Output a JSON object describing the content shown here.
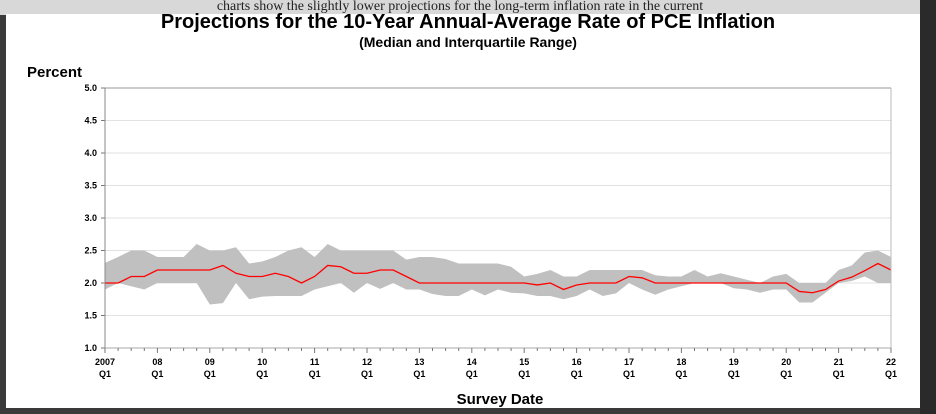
{
  "background_text": "charts show the slightly lower projections for the long-term inflation rate in the current",
  "chart_data": {
    "type": "area",
    "title": "Projections for the 10-Year Annual-Average Rate of PCE Inflation",
    "subtitle": "(Median and Interquartile Range)",
    "ylabel": "Percent",
    "xlabel": "Survey Date",
    "ylim": [
      1.0,
      5.0
    ],
    "yticks": [
      "1.0",
      "1.5",
      "2.0",
      "2.5",
      "3.0",
      "3.5",
      "4.0",
      "4.5",
      "5.0"
    ],
    "xticks": [
      [
        "2007",
        "Q1"
      ],
      [
        "08",
        "Q1"
      ],
      [
        "09",
        "Q1"
      ],
      [
        "10",
        "Q1"
      ],
      [
        "11",
        "Q1"
      ],
      [
        "12",
        "Q1"
      ],
      [
        "13",
        "Q1"
      ],
      [
        "14",
        "Q1"
      ],
      [
        "15",
        "Q1"
      ],
      [
        "16",
        "Q1"
      ],
      [
        "17",
        "Q1"
      ],
      [
        "18",
        "Q1"
      ],
      [
        "19",
        "Q1"
      ],
      [
        "20",
        "Q1"
      ],
      [
        "21",
        "Q1"
      ],
      [
        "22",
        "Q1"
      ]
    ],
    "x_range": [
      "2007Q1",
      "2022Q1"
    ],
    "grid": true,
    "colors": {
      "median": "#ff0000",
      "range": "#c0c0c0"
    },
    "series": [
      {
        "role": "median",
        "values": [
          2.0,
          2.0,
          2.1,
          2.1,
          2.2,
          2.2,
          2.2,
          2.2,
          2.2,
          2.27,
          2.15,
          2.1,
          2.1,
          2.15,
          2.1,
          2.0,
          2.1,
          2.27,
          2.25,
          2.15,
          2.15,
          2.2,
          2.2,
          2.1,
          2.0,
          2.0,
          2.0,
          2.0,
          2.0,
          2.0,
          2.0,
          2.0,
          2.0,
          1.97,
          2.0,
          1.9,
          1.97,
          2.0,
          2.0,
          2.0,
          2.1,
          2.08,
          2.0,
          2.0,
          2.0,
          2.0,
          2.0,
          2.0,
          2.0,
          2.0,
          2.0,
          2.0,
          2.0,
          1.87,
          1.85,
          1.9,
          2.03,
          2.09,
          2.19,
          2.3,
          2.2
        ]
      },
      {
        "role": "upper_quartile",
        "values": [
          2.31,
          2.4,
          2.5,
          2.5,
          2.4,
          2.4,
          2.4,
          2.6,
          2.5,
          2.5,
          2.55,
          2.3,
          2.33,
          2.4,
          2.5,
          2.55,
          2.4,
          2.6,
          2.5,
          2.5,
          2.5,
          2.5,
          2.5,
          2.36,
          2.4,
          2.4,
          2.37,
          2.3,
          2.3,
          2.3,
          2.3,
          2.25,
          2.1,
          2.14,
          2.2,
          2.1,
          2.1,
          2.2,
          2.2,
          2.2,
          2.2,
          2.2,
          2.12,
          2.1,
          2.1,
          2.2,
          2.1,
          2.15,
          2.1,
          2.05,
          2.0,
          2.1,
          2.14,
          2.0,
          2.0,
          2.0,
          2.2,
          2.27,
          2.47,
          2.5,
          2.4
        ]
      },
      {
        "role": "lower_quartile",
        "values": [
          1.9,
          2.0,
          1.95,
          1.9,
          2.0,
          2.0,
          2.0,
          2.0,
          1.67,
          1.69,
          2.0,
          1.75,
          1.79,
          1.8,
          1.8,
          1.8,
          1.9,
          1.95,
          2.0,
          1.85,
          2.0,
          1.91,
          2.0,
          1.9,
          1.9,
          1.83,
          1.8,
          1.8,
          1.9,
          1.81,
          1.9,
          1.85,
          1.84,
          1.8,
          1.8,
          1.75,
          1.8,
          1.9,
          1.8,
          1.84,
          2.0,
          1.9,
          1.82,
          1.9,
          1.95,
          2.0,
          2.0,
          2.0,
          1.92,
          1.9,
          1.85,
          1.9,
          1.9,
          1.7,
          1.7,
          1.85,
          2.0,
          2.03,
          2.1,
          2.0,
          2.0
        ]
      }
    ]
  }
}
